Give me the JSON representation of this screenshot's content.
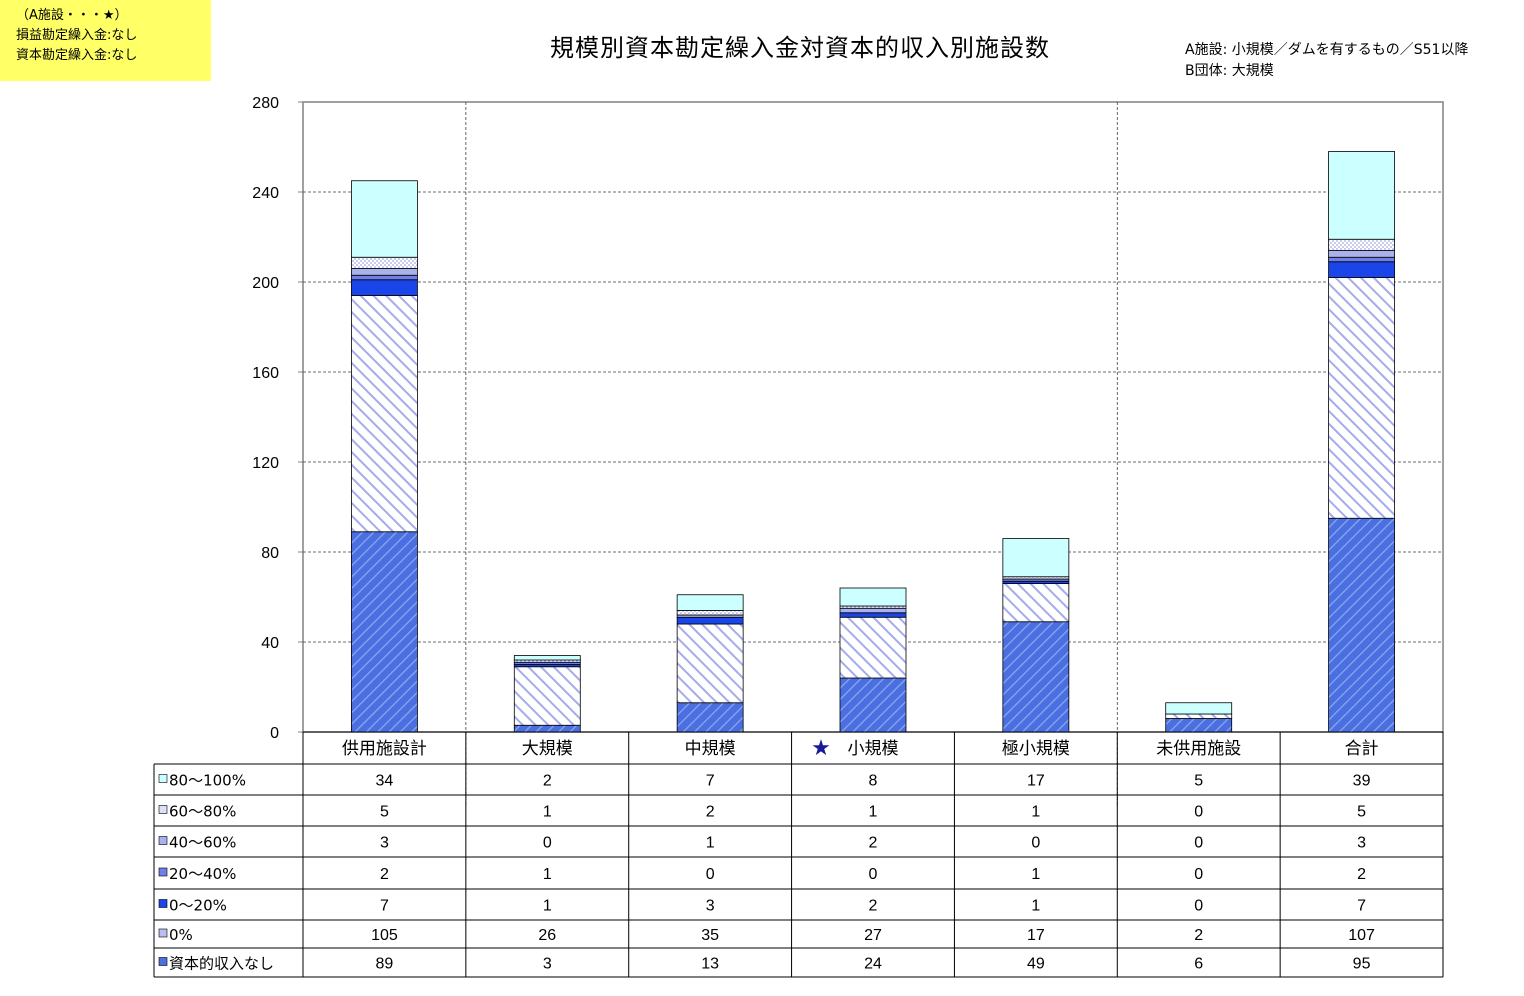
{
  "note": {
    "line1": "（A施設・・・★）",
    "line2": "損益勘定繰入金:なし",
    "line3": "資本勘定繰入金:なし"
  },
  "header_note": {
    "line1": "A施設: 小規模／ダムを有するもの／S51以降",
    "line2": "B団体: 大規模"
  },
  "star_marker": "★",
  "chart_data": {
    "type": "bar",
    "stacked": true,
    "title": "規模別資本勘定繰入金対資本的収入別施設数",
    "categories": [
      "供用施設計",
      "大規模",
      "中規模",
      "小規模",
      "極小規模",
      "未供用施設",
      "合計"
    ],
    "highlight_category": "小規模",
    "y_ticks": [
      "0",
      "40",
      "80",
      "120",
      "160",
      "200",
      "240",
      "280"
    ],
    "ylim": [
      0,
      280
    ],
    "grid": true,
    "series": [
      {
        "name": "資本的収入なし",
        "values": [
          89,
          3,
          13,
          24,
          49,
          6,
          95
        ],
        "fill": "#4a6fe0"
      },
      {
        "name": "0%",
        "values": [
          105,
          26,
          35,
          27,
          17,
          2,
          107
        ],
        "fill": "#b8bff0"
      },
      {
        "name": "0～20%",
        "values": [
          7,
          1,
          3,
          2,
          1,
          0,
          7
        ],
        "fill": "#1a45e8"
      },
      {
        "name": "20～40%",
        "values": [
          2,
          1,
          0,
          0,
          1,
          0,
          2
        ],
        "fill": "#6f7fe6"
      },
      {
        "name": "40～60%",
        "values": [
          3,
          0,
          1,
          2,
          0,
          0,
          3
        ],
        "fill": "#a9b2ef"
      },
      {
        "name": "60～80%",
        "values": [
          5,
          1,
          2,
          1,
          1,
          0,
          5
        ],
        "fill": "#dcdff7"
      },
      {
        "name": "80～100%",
        "values": [
          34,
          2,
          7,
          8,
          17,
          5,
          39
        ],
        "fill": "#ccffff"
      }
    ]
  }
}
